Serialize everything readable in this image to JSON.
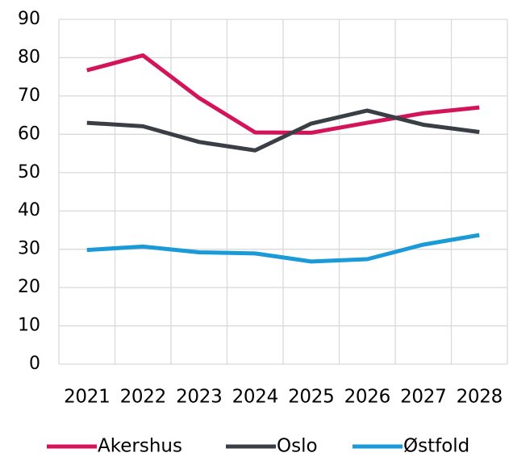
{
  "chart_data": {
    "type": "line",
    "categories": [
      "2021",
      "2022",
      "2023",
      "2024",
      "2025",
      "2026",
      "2027",
      "2028"
    ],
    "series": [
      {
        "name": "Akershus",
        "color": "#d4145a",
        "values": [
          76.7,
          80.6,
          69.5,
          60.5,
          60.4,
          63.0,
          65.5,
          67.0
        ]
      },
      {
        "name": "Oslo",
        "color": "#3a3f46",
        "values": [
          63.0,
          62.1,
          58.0,
          55.8,
          62.8,
          66.2,
          62.5,
          60.6
        ]
      },
      {
        "name": "Østfold",
        "color": "#1a9ad6",
        "values": [
          29.8,
          30.7,
          29.2,
          28.9,
          26.8,
          27.4,
          31.2,
          33.7
        ]
      }
    ],
    "ylim": [
      0,
      90
    ],
    "yticks": [
      0,
      10,
      20,
      30,
      40,
      50,
      60,
      70,
      80,
      90
    ],
    "grid": true,
    "legend": "bottom"
  }
}
